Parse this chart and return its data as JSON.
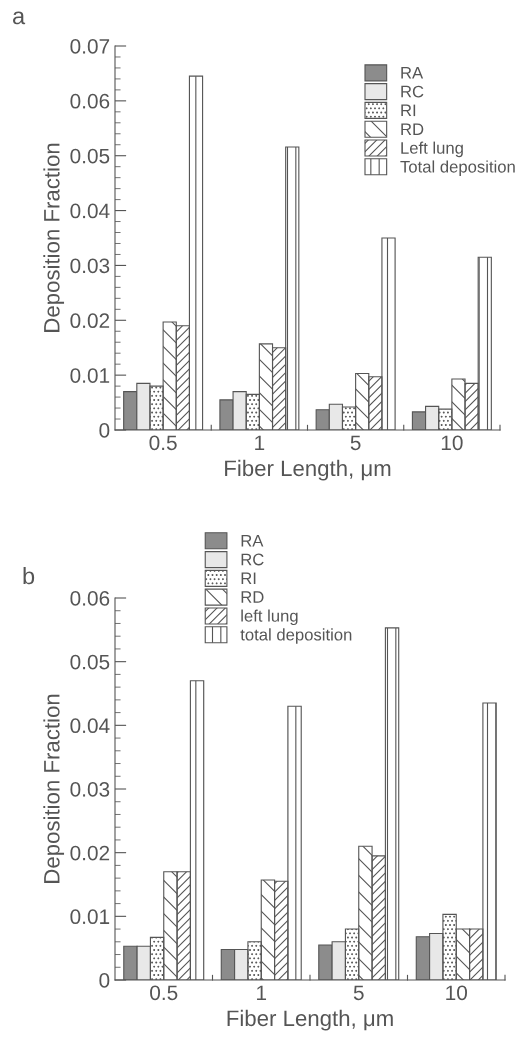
{
  "chart_data": [
    {
      "type": "bar",
      "categories": [
        "0.5",
        "1",
        "5",
        "10"
      ],
      "xlabel": "Fiber Length, μm",
      "ylabel": "Deposition Fraction",
      "annotations": [
        "a"
      ],
      "ylim": [
        0,
        0.07
      ],
      "yticks": [
        0,
        0.01,
        0.02,
        0.03,
        0.04,
        0.05,
        0.06,
        0.07
      ],
      "legend": "top right",
      "grid": false,
      "series": [
        {
          "name": "RA",
          "color": "#8c8c8c",
          "values": [
            0.007,
            0.0055,
            0.0037,
            0.0033
          ]
        },
        {
          "name": "RC",
          "color": "#e8e8e8",
          "values": [
            0.0085,
            0.007,
            0.0047,
            0.0043
          ]
        },
        {
          "name": "RI",
          "color": "#555555",
          "values": [
            0.008,
            0.0065,
            0.0042,
            0.0038
          ]
        },
        {
          "name": "RD",
          "color": "#555555",
          "values": [
            0.0197,
            0.0157,
            0.0103,
            0.0093
          ]
        },
        {
          "name": "Left lung",
          "color": "#555555",
          "values": [
            0.019,
            0.015,
            0.0097,
            0.0085
          ]
        },
        {
          "name": "Total deposition",
          "color": "#555555",
          "values": [
            0.0645,
            0.0516,
            0.035,
            0.0315
          ]
        }
      ]
    },
    {
      "type": "bar",
      "categories": [
        "0.5",
        "1",
        "5",
        "10"
      ],
      "xlabel": "Fiber Length, μm",
      "ylabel": "Deposition Fraction",
      "annotations": [
        "b"
      ],
      "ylim": [
        0,
        0.06
      ],
      "yticks": [
        0,
        0.01,
        0.02,
        0.03,
        0.04,
        0.05,
        0.06
      ],
      "legend": "top",
      "grid": false,
      "series": [
        {
          "name": "RA",
          "color": "#8c8c8c",
          "values": [
            0.0053,
            0.0048,
            0.0055,
            0.0068
          ]
        },
        {
          "name": "RC",
          "color": "#e8e8e8",
          "values": [
            0.0053,
            0.0048,
            0.006,
            0.0073
          ]
        },
        {
          "name": "RI",
          "color": "#555555",
          "values": [
            0.0067,
            0.006,
            0.008,
            0.0103
          ]
        },
        {
          "name": "RD",
          "color": "#555555",
          "values": [
            0.017,
            0.0157,
            0.021,
            0.008
          ]
        },
        {
          "name": "left lung",
          "color": "#555555",
          "values": [
            0.017,
            0.0155,
            0.0195,
            0.008
          ]
        },
        {
          "name": "total deposition",
          "color": "#555555",
          "values": [
            0.047,
            0.043,
            0.0553,
            0.0435
          ]
        }
      ]
    }
  ]
}
